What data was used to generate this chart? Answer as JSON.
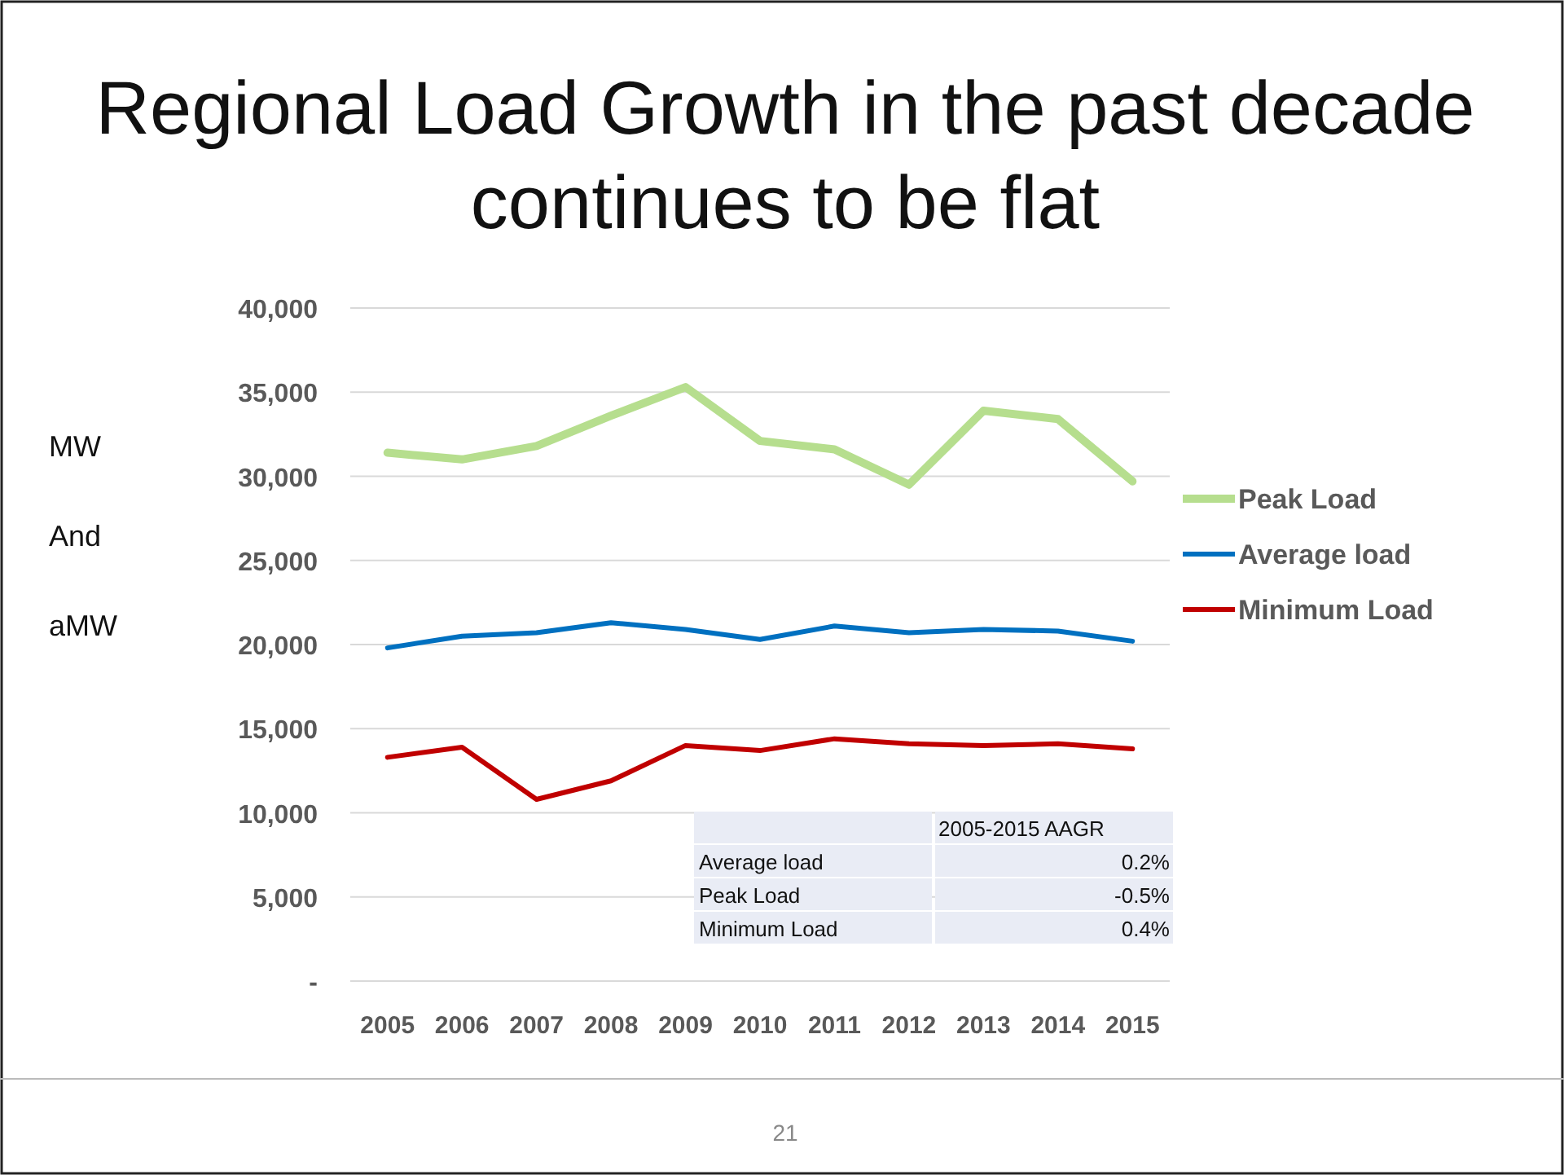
{
  "chart_data": {
    "type": "line",
    "title": "Regional Load Growth in the past decade continues to be flat",
    "ylabel": "MW And aMW",
    "categories": [
      "2005",
      "2006",
      "2007",
      "2008",
      "2009",
      "2010",
      "2011",
      "2012",
      "2013",
      "2014",
      "2015"
    ],
    "series": [
      {
        "name": "Peak Load",
        "color": "#b6de8e",
        "values": [
          31400,
          31000,
          31800,
          33600,
          35300,
          32100,
          31600,
          29500,
          33900,
          33400,
          29700
        ]
      },
      {
        "name": "Average load",
        "color": "#0070c0",
        "values": [
          19800,
          20500,
          20700,
          21300,
          20900,
          20300,
          21100,
          20700,
          20900,
          20800,
          20200
        ]
      },
      {
        "name": "Minimum Load",
        "color": "#c00000",
        "values": [
          13300,
          13900,
          10800,
          11900,
          14000,
          13700,
          14400,
          14100,
          14000,
          14100,
          13800
        ]
      }
    ],
    "ylim": [
      0,
      40000
    ],
    "yticks": [
      {
        "value": 0,
        "label": "-"
      },
      {
        "value": 5000,
        "label": "5,000"
      },
      {
        "value": 10000,
        "label": "10,000"
      },
      {
        "value": 15000,
        "label": "15,000"
      },
      {
        "value": 20000,
        "label": "20,000"
      },
      {
        "value": 25000,
        "label": "25,000"
      },
      {
        "value": 30000,
        "label": "30,000"
      },
      {
        "value": 35000,
        "label": "35,000"
      },
      {
        "value": 40000,
        "label": "40,000"
      }
    ],
    "grid": "y",
    "legend": "right",
    "marker": "none",
    "line_style": "solid",
    "annotations": [
      "2005-2015 AAGR",
      "Average load",
      "0.2%",
      "Peak Load",
      "-0.5%",
      "Minimum Load",
      "0.4%",
      "21"
    ]
  }
}
